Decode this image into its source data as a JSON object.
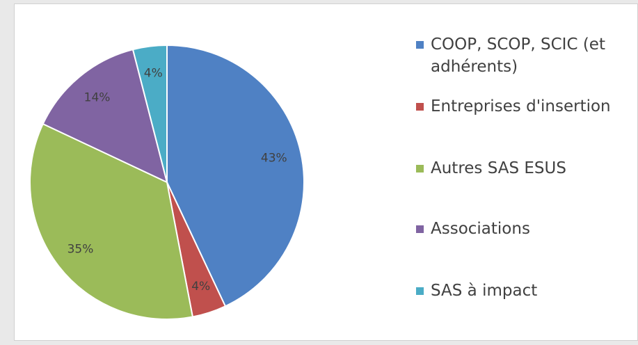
{
  "chart_data": {
    "type": "pie",
    "categories": [
      "COOP, SCOP, SCIC (et adhérents)",
      "Entreprises d'insertion",
      "Autres SAS ESUS",
      "Associations",
      "SAS à impact"
    ],
    "values": [
      43,
      4,
      35,
      14,
      4
    ],
    "value_labels": [
      "43%",
      "4%",
      "35%",
      "14%",
      "4%"
    ],
    "colors": [
      "#4f81c4",
      "#c0504d",
      "#9bbb59",
      "#8064a2",
      "#4bacc6"
    ],
    "legend": "right"
  }
}
